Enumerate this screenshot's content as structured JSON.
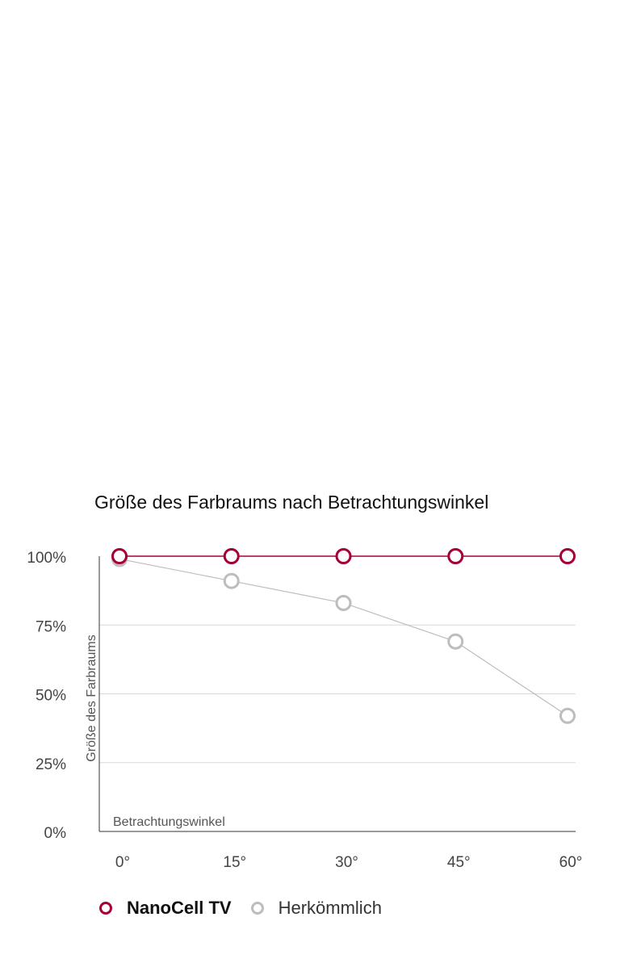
{
  "chart_data": {
    "type": "line",
    "title": "Größe des Farbraums nach Betrachtungswinkel",
    "xlabel": "Betrachtungswinkel",
    "ylabel": "Größe des Farbraums",
    "categories": [
      "0°",
      "15°",
      "30°",
      "45°",
      "60°"
    ],
    "yticks": [
      "0%",
      "25%",
      "50%",
      "75%",
      "100%"
    ],
    "ylim": [
      0,
      100
    ],
    "grid": true,
    "legend_position": "bottom",
    "series": [
      {
        "name": "NanoCell TV",
        "values": [
          100,
          100,
          100,
          100,
          100
        ],
        "color": "#a50034"
      },
      {
        "name": "Herkömmlich",
        "values": [
          99,
          91,
          83,
          69,
          42
        ],
        "color": "#bdbdbd"
      }
    ]
  }
}
